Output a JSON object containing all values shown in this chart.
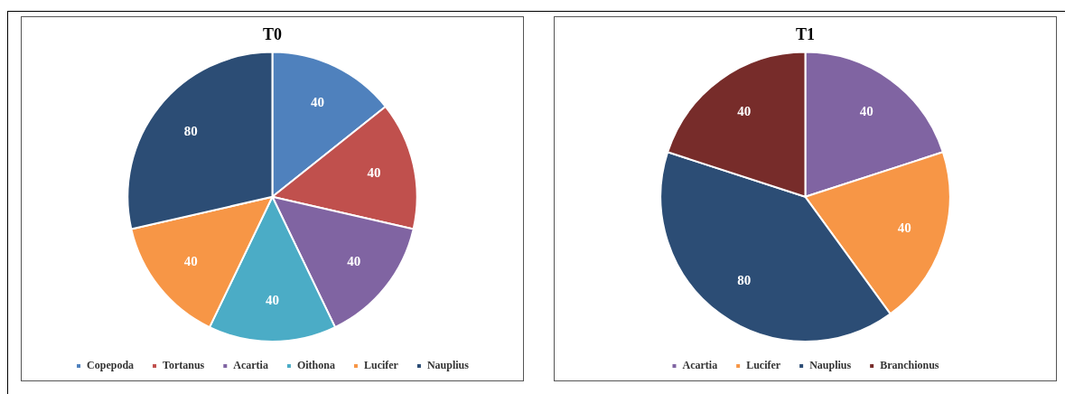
{
  "chart_data": [
    {
      "type": "pie",
      "title": "T0",
      "categories": [
        "Copepoda",
        "Tortanus",
        "Acartia",
        "Oithona",
        "Lucifer",
        "Nauplius"
      ],
      "values": [
        40,
        40,
        40,
        40,
        40,
        80
      ],
      "colors": [
        "#4f81bd",
        "#c0504d",
        "#8064a2",
        "#4bacc6",
        "#f79646",
        "#2c4d75"
      ],
      "data_labels": true,
      "legend": "bottom"
    },
    {
      "type": "pie",
      "title": "T1",
      "categories": [
        "Acartia",
        "Lucifer",
        "Nauplius",
        "Branchionus"
      ],
      "values": [
        40,
        40,
        80,
        40
      ],
      "colors": [
        "#8064a2",
        "#f79646",
        "#2c4d75",
        "#772c2a"
      ],
      "data_labels": true,
      "legend": "bottom"
    }
  ]
}
